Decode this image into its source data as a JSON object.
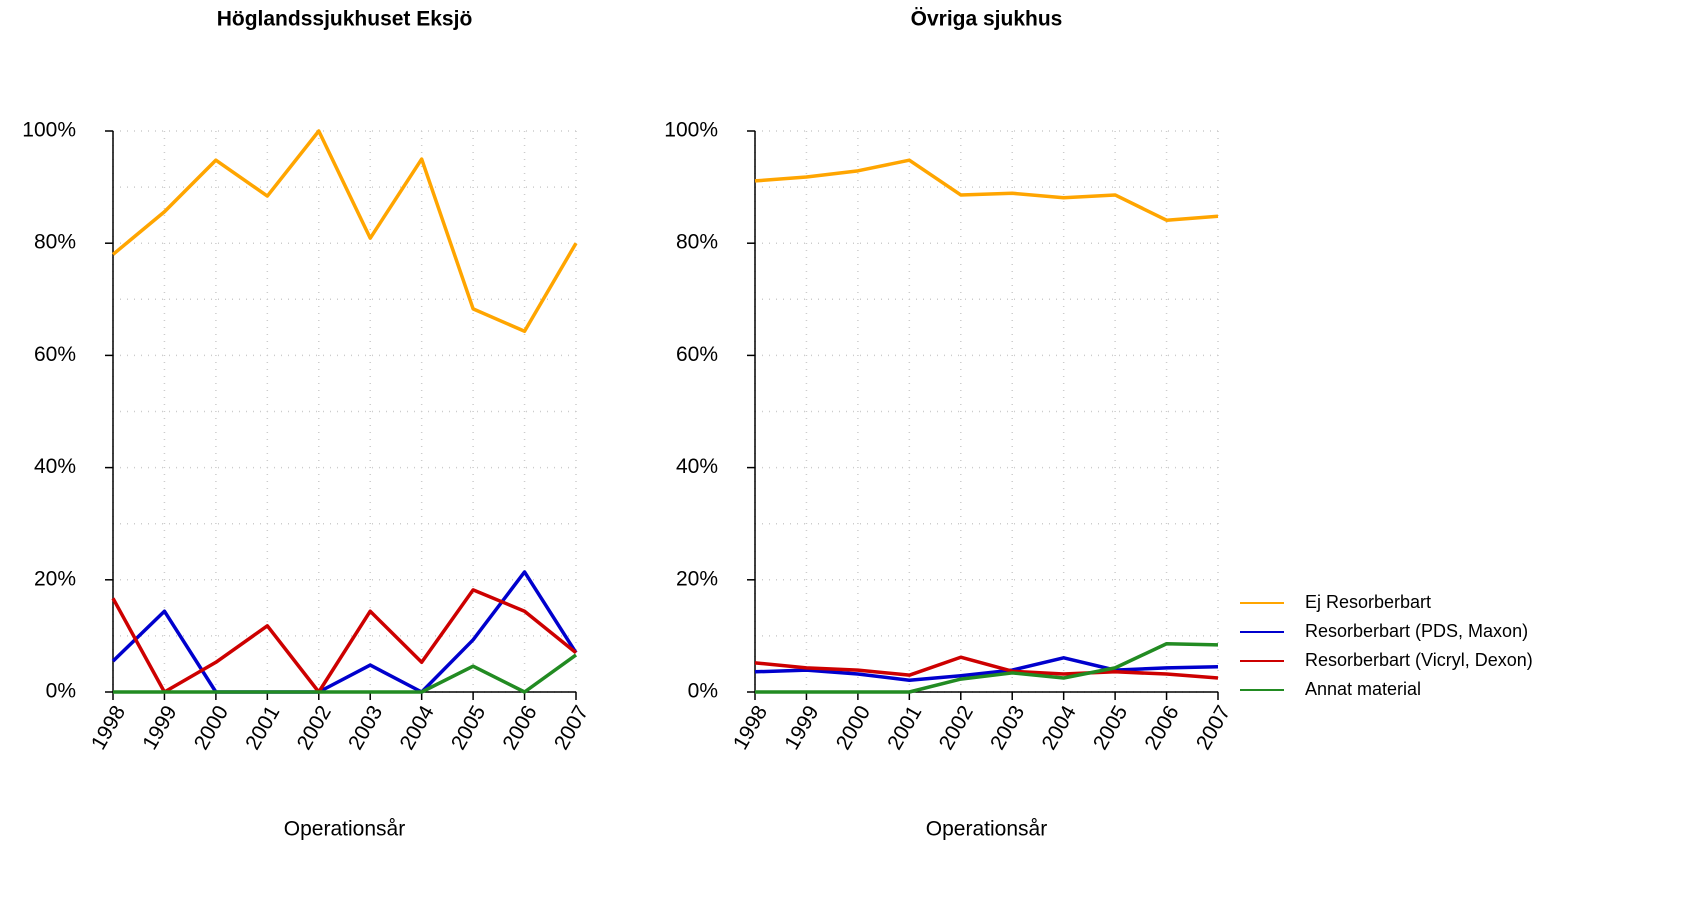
{
  "chart_data": [
    {
      "type": "line",
      "title": "Höglandssjukhuset Eksjö",
      "x_label": "Operationsår",
      "x": [
        1998,
        1999,
        2000,
        2001,
        2002,
        2003,
        2004,
        2005,
        2006,
        2007
      ],
      "xlim": [
        1998,
        2007
      ],
      "xticks": [
        1998,
        1999,
        2000,
        2001,
        2002,
        2003,
        2004,
        2005,
        2006,
        2007
      ],
      "ylim": [
        0,
        100
      ],
      "yticks": [
        {
          "value": 0,
          "label": "0%"
        },
        {
          "value": 20,
          "label": "20%"
        },
        {
          "value": 40,
          "label": "40%"
        },
        {
          "value": 60,
          "label": "60%"
        },
        {
          "value": 80,
          "label": "80%"
        },
        {
          "value": 100,
          "label": "100%"
        }
      ],
      "minor_yticks": [
        10,
        30,
        50,
        70,
        90
      ],
      "grid": true,
      "series": [
        {
          "name": "Ej Resorberbart",
          "color": "#FFA500",
          "values": [
            78,
            85.6,
            94.8,
            88.4,
            100,
            80.9,
            95,
            68.3,
            64.3,
            80
          ]
        },
        {
          "name": "Resorberbart (PDS, Maxon)",
          "color": "#0000CD",
          "values": [
            5.5,
            14.4,
            0,
            0,
            0,
            4.8,
            0,
            9.3,
            21.4,
            7
          ]
        },
        {
          "name": "Resorberbart (Vicryl, Dexon)",
          "color": "#CD0000",
          "values": [
            16.7,
            0,
            5.3,
            11.8,
            0,
            14.4,
            5.3,
            18.2,
            14.4,
            7
          ]
        },
        {
          "name": "Annat material",
          "color": "#228B22",
          "values": [
            0,
            0,
            0,
            0,
            0,
            0,
            0,
            4.6,
            0,
            6.6
          ]
        }
      ]
    },
    {
      "type": "line",
      "title": "Övriga sjukhus",
      "x_label": "Operationsår",
      "x": [
        1998,
        1999,
        2000,
        2001,
        2002,
        2003,
        2004,
        2005,
        2006,
        2007
      ],
      "xlim": [
        1998,
        2007
      ],
      "xticks": [
        1998,
        1999,
        2000,
        2001,
        2002,
        2003,
        2004,
        2005,
        2006,
        2007
      ],
      "ylim": [
        0,
        100
      ],
      "yticks": [
        {
          "value": 0,
          "label": "0%"
        },
        {
          "value": 20,
          "label": "20%"
        },
        {
          "value": 40,
          "label": "40%"
        },
        {
          "value": 60,
          "label": "60%"
        },
        {
          "value": 80,
          "label": "80%"
        },
        {
          "value": 100,
          "label": "100%"
        }
      ],
      "minor_yticks": [
        10,
        30,
        50,
        70,
        90
      ],
      "grid": true,
      "legend": "right",
      "series": [
        {
          "name": "Ej Resorberbart",
          "color": "#FFA500",
          "values": [
            91.1,
            91.8,
            92.9,
            94.8,
            88.6,
            88.9,
            88.1,
            88.6,
            84.1,
            84.8
          ]
        },
        {
          "name": "Resorberbart (PDS, Maxon)",
          "color": "#0000CD",
          "values": [
            3.6,
            3.9,
            3.2,
            2.1,
            2.9,
            3.9,
            6.1,
            3.9,
            4.3,
            4.5
          ]
        },
        {
          "name": "Resorberbart (Vicryl, Dexon)",
          "color": "#CD0000",
          "values": [
            5.2,
            4.3,
            3.9,
            3.0,
            6.2,
            3.7,
            3.2,
            3.6,
            3.2,
            2.5
          ]
        },
        {
          "name": "Annat material",
          "color": "#228B22",
          "values": [
            0,
            0,
            0,
            0,
            2.3,
            3.4,
            2.5,
            4.3,
            8.6,
            8.4
          ]
        }
      ]
    }
  ]
}
